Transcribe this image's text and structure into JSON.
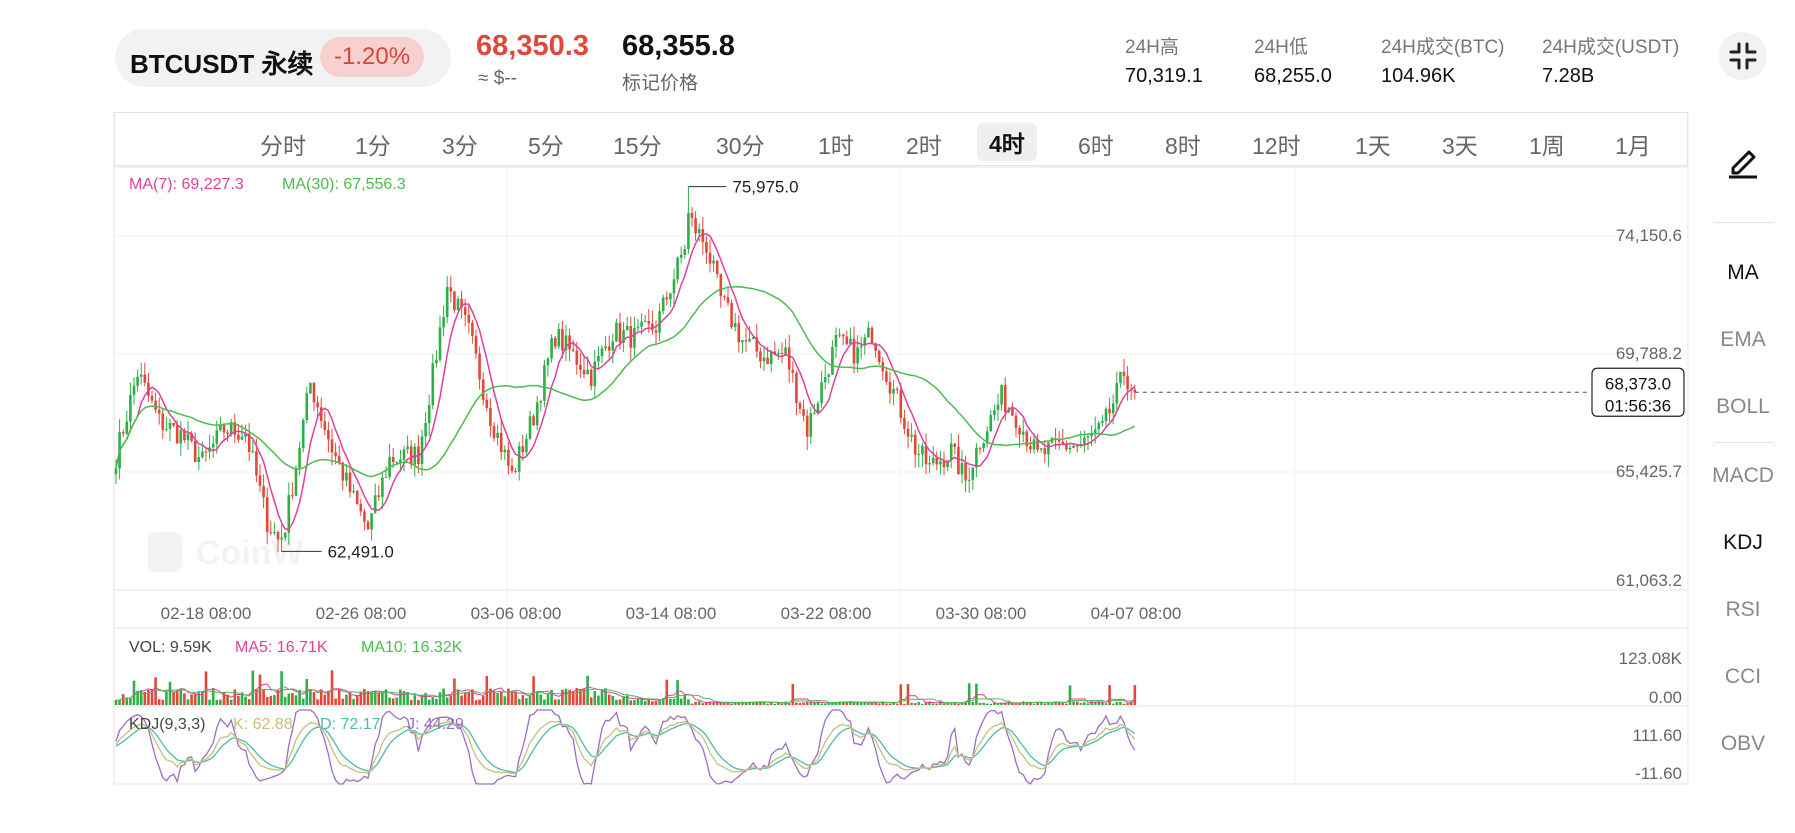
{
  "header": {
    "symbol": "BTCUSDT 永续",
    "change": "-1.20%",
    "last_price": "68,350.3",
    "usd_approx": "≈ $--",
    "mark_price": "68,355.8",
    "mark_label": "标记价格",
    "stats": [
      {
        "label": "24H高",
        "value": "70,319.1"
      },
      {
        "label": "24H低",
        "value": "68,255.0"
      },
      {
        "label": "24H成交(BTC)",
        "value": "104.96K"
      },
      {
        "label": "24H成交(USDT)",
        "value": "7.28B"
      }
    ]
  },
  "timeframes": [
    {
      "label": "分时"
    },
    {
      "label": "1分"
    },
    {
      "label": "3分"
    },
    {
      "label": "5分"
    },
    {
      "label": "15分"
    },
    {
      "label": "30分"
    },
    {
      "label": "1时"
    },
    {
      "label": "2时"
    },
    {
      "label": "4时",
      "active": true
    },
    {
      "label": "6时"
    },
    {
      "label": "8时"
    },
    {
      "label": "12时"
    },
    {
      "label": "1天"
    },
    {
      "label": "3天"
    },
    {
      "label": "1周"
    },
    {
      "label": "1月"
    }
  ],
  "side_tools": [
    {
      "label": "MA",
      "active": true
    },
    {
      "label": "EMA",
      "active": false
    },
    {
      "label": "BOLL",
      "active": false
    },
    {
      "label": "MACD",
      "active": false
    },
    {
      "label": "KDJ",
      "active": true
    },
    {
      "label": "RSI",
      "active": false
    },
    {
      "label": "CCI",
      "active": false
    },
    {
      "label": "OBV",
      "active": false
    }
  ],
  "chart_data": {
    "type": "candlestick",
    "interval": "4时",
    "watermark": "CoinW",
    "colors": {
      "up": "#2dae46",
      "down": "#e2483a",
      "ma7": "#e0409a",
      "ma30": "#4cbb50",
      "kdj_k": "#c6c079",
      "kdj_d": "#4dbbaa",
      "kdj_j": "#9b6ec4"
    },
    "price_axis": {
      "ticks": [
        "74,150.6",
        "69,788.2",
        "65,425.7",
        "61,063.2"
      ],
      "min": 61063.2,
      "max": 76700
    },
    "time_axis": {
      "ticks": [
        "02-18 08:00",
        "02-26 08:00",
        "03-06 08:00",
        "03-14 08:00",
        "03-22 08:00",
        "03-30 08:00",
        "04-07 08:00"
      ]
    },
    "ma_legend": {
      "ma7": "MA(7): 69,227.3",
      "ma30": "MA(30): 67,556.3"
    },
    "annotations": {
      "high": "75,975.0",
      "low": "62,491.0"
    },
    "current_price": {
      "value": 68373.0,
      "label": "68,373.0",
      "countdown": "01:56:36"
    },
    "anchors": [
      [
        0,
        66000
      ],
      [
        6,
        69100
      ],
      [
        12,
        67300
      ],
      [
        18,
        66800
      ],
      [
        24,
        65800
      ],
      [
        30,
        67000
      ],
      [
        36,
        66900
      ],
      [
        42,
        63600
      ],
      [
        46,
        62700
      ],
      [
        54,
        68700
      ],
      [
        60,
        66300
      ],
      [
        66,
        64400
      ],
      [
        70,
        63300
      ],
      [
        76,
        65900
      ],
      [
        84,
        66100
      ],
      [
        88,
        69000
      ],
      [
        92,
        72300
      ],
      [
        98,
        70600
      ],
      [
        104,
        67500
      ],
      [
        110,
        65300
      ],
      [
        116,
        67500
      ],
      [
        122,
        70500
      ],
      [
        128,
        69600
      ],
      [
        132,
        69000
      ],
      [
        138,
        70600
      ],
      [
        144,
        70400
      ],
      [
        150,
        70800
      ],
      [
        156,
        73000
      ],
      [
        160,
        74600
      ],
      [
        164,
        73800
      ],
      [
        168,
        71800
      ],
      [
        174,
        70300
      ],
      [
        180,
        69700
      ],
      [
        186,
        69800
      ],
      [
        192,
        67000
      ],
      [
        200,
        70200
      ],
      [
        206,
        69800
      ],
      [
        210,
        70600
      ],
      [
        216,
        68400
      ],
      [
        222,
        66300
      ],
      [
        226,
        65600
      ],
      [
        232,
        66200
      ],
      [
        236,
        65100
      ],
      [
        240,
        66600
      ],
      [
        246,
        68200
      ],
      [
        250,
        67500
      ],
      [
        256,
        66000
      ],
      [
        262,
        66400
      ],
      [
        268,
        66400
      ],
      [
        274,
        67000
      ],
      [
        278,
        68300
      ],
      [
        280,
        69100
      ],
      [
        283,
        68370
      ]
    ],
    "volume": {
      "legend": {
        "vol": "VOL: 9.59K",
        "ma5": "MA5: 16.71K",
        "ma10": "MA10: 16.32K"
      },
      "axis": [
        "123.08K",
        "0.00"
      ],
      "max": 123080
    },
    "kdj": {
      "legend": {
        "title": "KDJ(9,3,3)",
        "k": "K: 62.88",
        "d": "D: 72.17",
        "j": "J: 44.29"
      },
      "axis": [
        "111.60",
        "-11.60"
      ],
      "min": -11.6,
      "max": 111.6
    }
  }
}
